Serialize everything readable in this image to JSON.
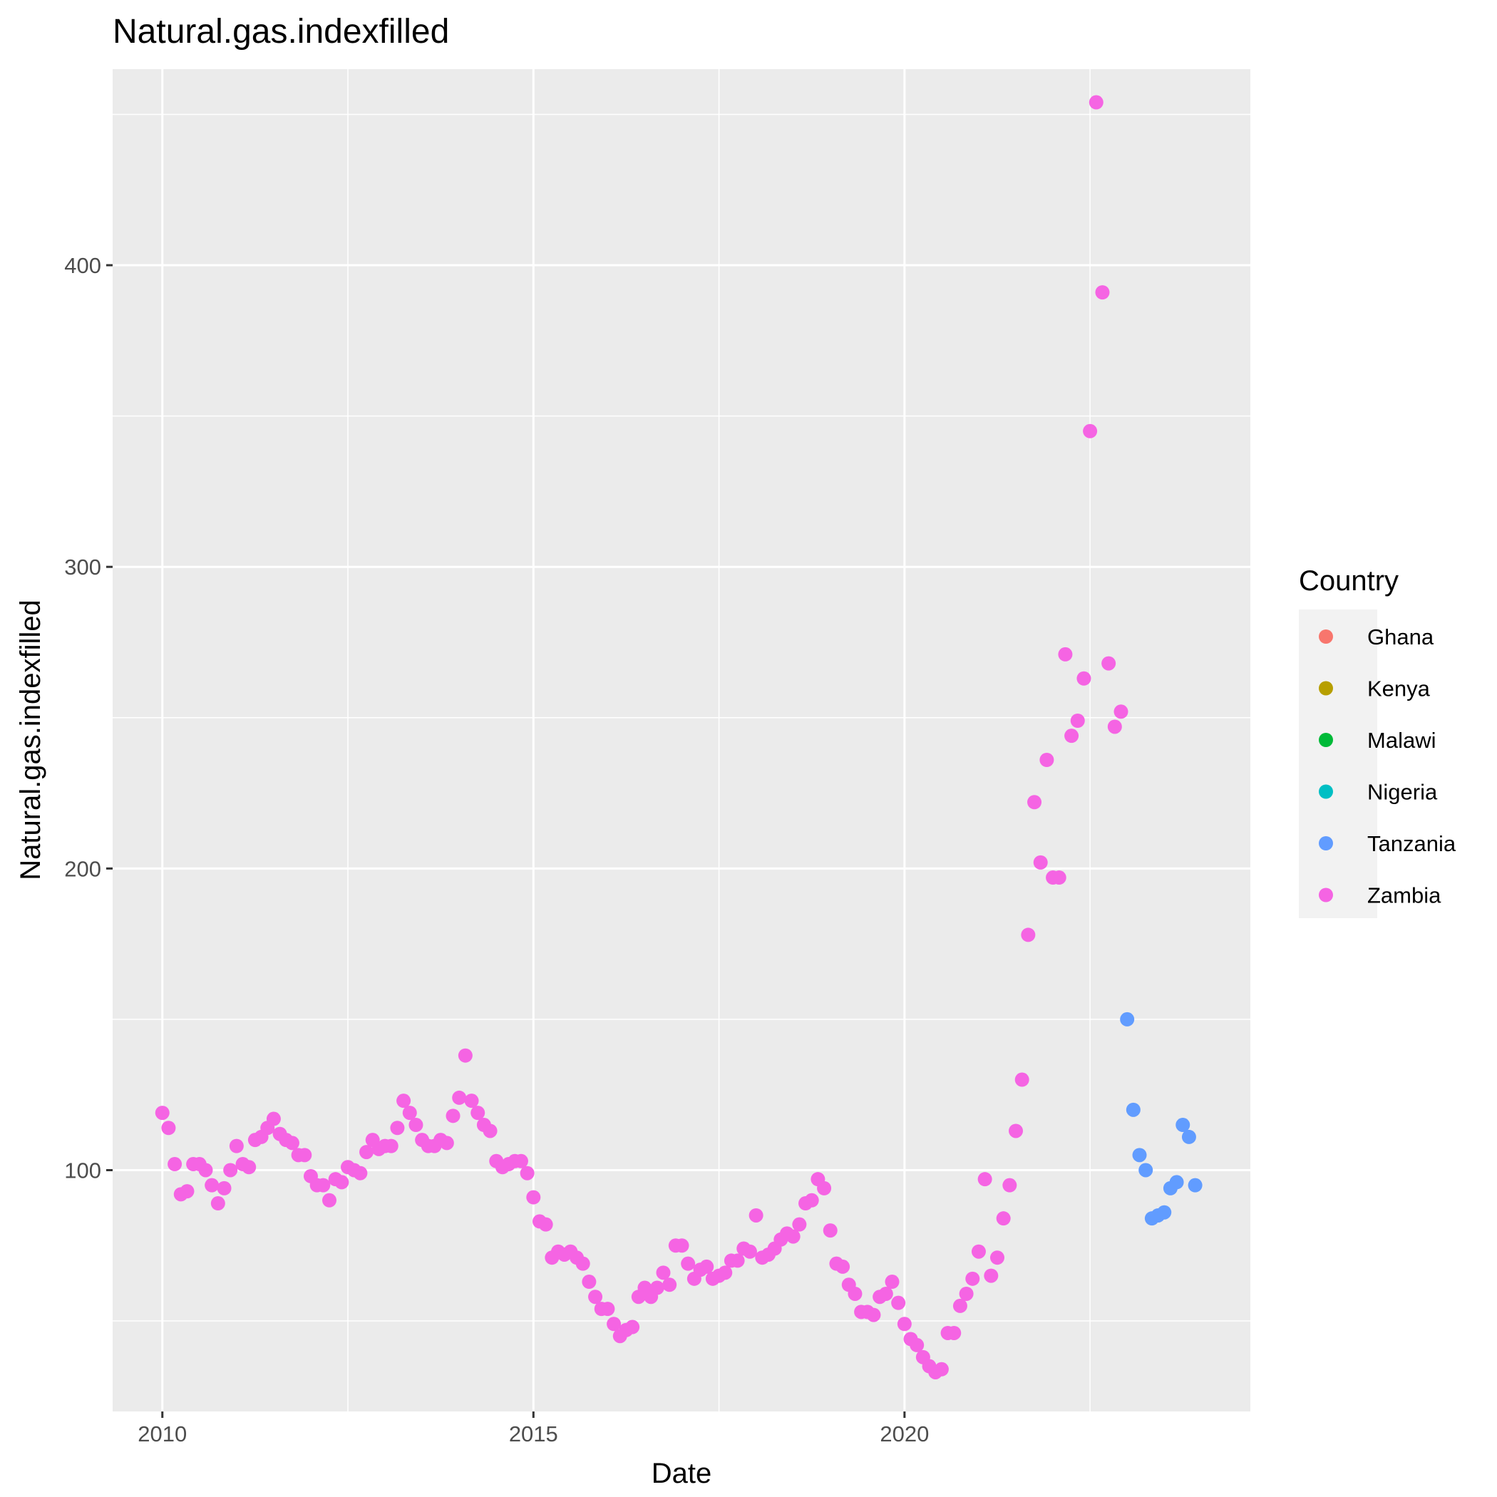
{
  "chart_data": {
    "type": "scatter",
    "title": "Natural.gas.indexfilled",
    "xlabel": "Date",
    "ylabel": "Natural.gas.indexfilled",
    "xlim": [
      2009.33,
      2024.66
    ],
    "ylim": [
      20,
      465
    ],
    "x_ticks": [
      2010,
      2015,
      2020
    ],
    "x_tick_labels": [
      "2010",
      "2015",
      "2020"
    ],
    "y_ticks": [
      100,
      200,
      300,
      400
    ],
    "y_tick_labels": [
      "100",
      "200",
      "300",
      "400"
    ],
    "grid": true,
    "legend": {
      "title": "Country",
      "position": "right",
      "entries": [
        {
          "name": "Ghana",
          "color": "#F8766D"
        },
        {
          "name": "Kenya",
          "color": "#B79F00"
        },
        {
          "name": "Malawi",
          "color": "#00BA38"
        },
        {
          "name": "Nigeria",
          "color": "#00BFC4"
        },
        {
          "name": "Tanzania",
          "color": "#619CFF"
        },
        {
          "name": "Zambia",
          "color": "#F564E3"
        }
      ]
    },
    "series": [
      {
        "name": "Zambia",
        "color": "#F564E3",
        "points": [
          [
            "2010-01",
            119
          ],
          [
            "2010-02",
            114
          ],
          [
            "2010-03",
            102
          ],
          [
            "2010-04",
            92
          ],
          [
            "2010-05",
            93
          ],
          [
            "2010-06",
            102
          ],
          [
            "2010-07",
            102
          ],
          [
            "2010-08",
            100
          ],
          [
            "2010-09",
            95
          ],
          [
            "2010-10",
            89
          ],
          [
            "2010-11",
            94
          ],
          [
            "2010-12",
            100
          ],
          [
            "2011-01",
            108
          ],
          [
            "2011-02",
            102
          ],
          [
            "2011-03",
            101
          ],
          [
            "2011-04",
            110
          ],
          [
            "2011-05",
            111
          ],
          [
            "2011-06",
            114
          ],
          [
            "2011-07",
            117
          ],
          [
            "2011-08",
            112
          ],
          [
            "2011-09",
            110
          ],
          [
            "2011-10",
            109
          ],
          [
            "2011-11",
            105
          ],
          [
            "2011-12",
            105
          ],
          [
            "2012-01",
            98
          ],
          [
            "2012-02",
            95
          ],
          [
            "2012-03",
            95
          ],
          [
            "2012-04",
            90
          ],
          [
            "2012-05",
            97
          ],
          [
            "2012-06",
            96
          ],
          [
            "2012-07",
            101
          ],
          [
            "2012-08",
            100
          ],
          [
            "2012-09",
            99
          ],
          [
            "2012-10",
            106
          ],
          [
            "2012-11",
            110
          ],
          [
            "2012-12",
            107
          ],
          [
            "2013-01",
            108
          ],
          [
            "2013-02",
            108
          ],
          [
            "2013-03",
            114
          ],
          [
            "2013-04",
            123
          ],
          [
            "2013-05",
            119
          ],
          [
            "2013-06",
            115
          ],
          [
            "2013-07",
            110
          ],
          [
            "2013-08",
            108
          ],
          [
            "2013-09",
            108
          ],
          [
            "2013-10",
            110
          ],
          [
            "2013-11",
            109
          ],
          [
            "2013-12",
            118
          ],
          [
            "2014-01",
            124
          ],
          [
            "2014-02",
            138
          ],
          [
            "2014-03",
            123
          ],
          [
            "2014-04",
            119
          ],
          [
            "2014-05",
            115
          ],
          [
            "2014-06",
            113
          ],
          [
            "2014-07",
            103
          ],
          [
            "2014-08",
            101
          ],
          [
            "2014-09",
            102
          ],
          [
            "2014-10",
            103
          ],
          [
            "2014-11",
            103
          ],
          [
            "2014-12",
            99
          ],
          [
            "2015-01",
            91
          ],
          [
            "2015-02",
            83
          ],
          [
            "2015-03",
            82
          ],
          [
            "2015-04",
            71
          ],
          [
            "2015-05",
            73
          ],
          [
            "2015-06",
            72
          ],
          [
            "2015-07",
            73
          ],
          [
            "2015-08",
            71
          ],
          [
            "2015-09",
            69
          ],
          [
            "2015-10",
            63
          ],
          [
            "2015-11",
            58
          ],
          [
            "2015-12",
            54
          ],
          [
            "2016-01",
            54
          ],
          [
            "2016-02",
            49
          ],
          [
            "2016-03",
            45
          ],
          [
            "2016-04",
            47
          ],
          [
            "2016-05",
            48
          ],
          [
            "2016-06",
            58
          ],
          [
            "2016-07",
            61
          ],
          [
            "2016-08",
            58
          ],
          [
            "2016-09",
            61
          ],
          [
            "2016-10",
            66
          ],
          [
            "2016-11",
            62
          ],
          [
            "2016-12",
            75
          ],
          [
            "2017-01",
            75
          ],
          [
            "2017-02",
            69
          ],
          [
            "2017-03",
            64
          ],
          [
            "2017-04",
            67
          ],
          [
            "2017-05",
            68
          ],
          [
            "2017-06",
            64
          ],
          [
            "2017-07",
            65
          ],
          [
            "2017-08",
            66
          ],
          [
            "2017-09",
            70
          ],
          [
            "2017-10",
            70
          ],
          [
            "2017-11",
            74
          ],
          [
            "2017-12",
            73
          ],
          [
            "2018-01",
            85
          ],
          [
            "2018-02",
            71
          ],
          [
            "2018-03",
            72
          ],
          [
            "2018-04",
            74
          ],
          [
            "2018-05",
            77
          ],
          [
            "2018-06",
            79
          ],
          [
            "2018-07",
            78
          ],
          [
            "2018-08",
            82
          ],
          [
            "2018-09",
            89
          ],
          [
            "2018-10",
            90
          ],
          [
            "2018-11",
            97
          ],
          [
            "2018-12",
            94
          ],
          [
            "2019-01",
            80
          ],
          [
            "2019-02",
            69
          ],
          [
            "2019-03",
            68
          ],
          [
            "2019-04",
            62
          ],
          [
            "2019-05",
            59
          ],
          [
            "2019-06",
            53
          ],
          [
            "2019-07",
            53
          ],
          [
            "2019-08",
            52
          ],
          [
            "2019-09",
            58
          ],
          [
            "2019-10",
            59
          ],
          [
            "2019-11",
            63
          ],
          [
            "2019-12",
            56
          ],
          [
            "2020-01",
            49
          ],
          [
            "2020-02",
            44
          ],
          [
            "2020-03",
            42
          ],
          [
            "2020-04",
            38
          ],
          [
            "2020-05",
            35
          ],
          [
            "2020-06",
            33
          ],
          [
            "2020-07",
            34
          ],
          [
            "2020-08",
            46
          ],
          [
            "2020-09",
            46
          ],
          [
            "2020-10",
            55
          ],
          [
            "2020-11",
            59
          ],
          [
            "2020-12",
            64
          ],
          [
            "2021-01",
            73
          ],
          [
            "2021-02",
            97
          ],
          [
            "2021-03",
            65
          ],
          [
            "2021-04",
            71
          ],
          [
            "2021-05",
            84
          ],
          [
            "2021-06",
            95
          ],
          [
            "2021-07",
            113
          ],
          [
            "2021-08",
            130
          ],
          [
            "2021-09",
            178
          ],
          [
            "2021-10",
            222
          ],
          [
            "2021-11",
            202
          ],
          [
            "2021-12",
            236
          ],
          [
            "2022-01",
            197
          ],
          [
            "2022-02",
            197
          ],
          [
            "2022-03",
            271
          ],
          [
            "2022-04",
            244
          ],
          [
            "2022-05",
            249
          ],
          [
            "2022-06",
            263
          ],
          [
            "2022-07",
            345
          ],
          [
            "2022-08",
            454
          ],
          [
            "2022-09",
            391
          ],
          [
            "2022-10",
            268
          ],
          [
            "2022-11",
            247
          ],
          [
            "2022-12",
            252
          ]
        ]
      },
      {
        "name": "Tanzania",
        "color": "#619CFF",
        "points": [
          [
            "2023-01",
            150
          ],
          [
            "2023-02",
            120
          ],
          [
            "2023-03",
            105
          ],
          [
            "2023-04",
            100
          ],
          [
            "2023-05",
            84
          ],
          [
            "2023-06",
            85
          ],
          [
            "2023-07",
            86
          ],
          [
            "2023-08",
            94
          ],
          [
            "2023-09",
            96
          ],
          [
            "2023-10",
            115
          ],
          [
            "2023-11",
            111
          ],
          [
            "2023-12",
            95
          ]
        ]
      }
    ]
  }
}
